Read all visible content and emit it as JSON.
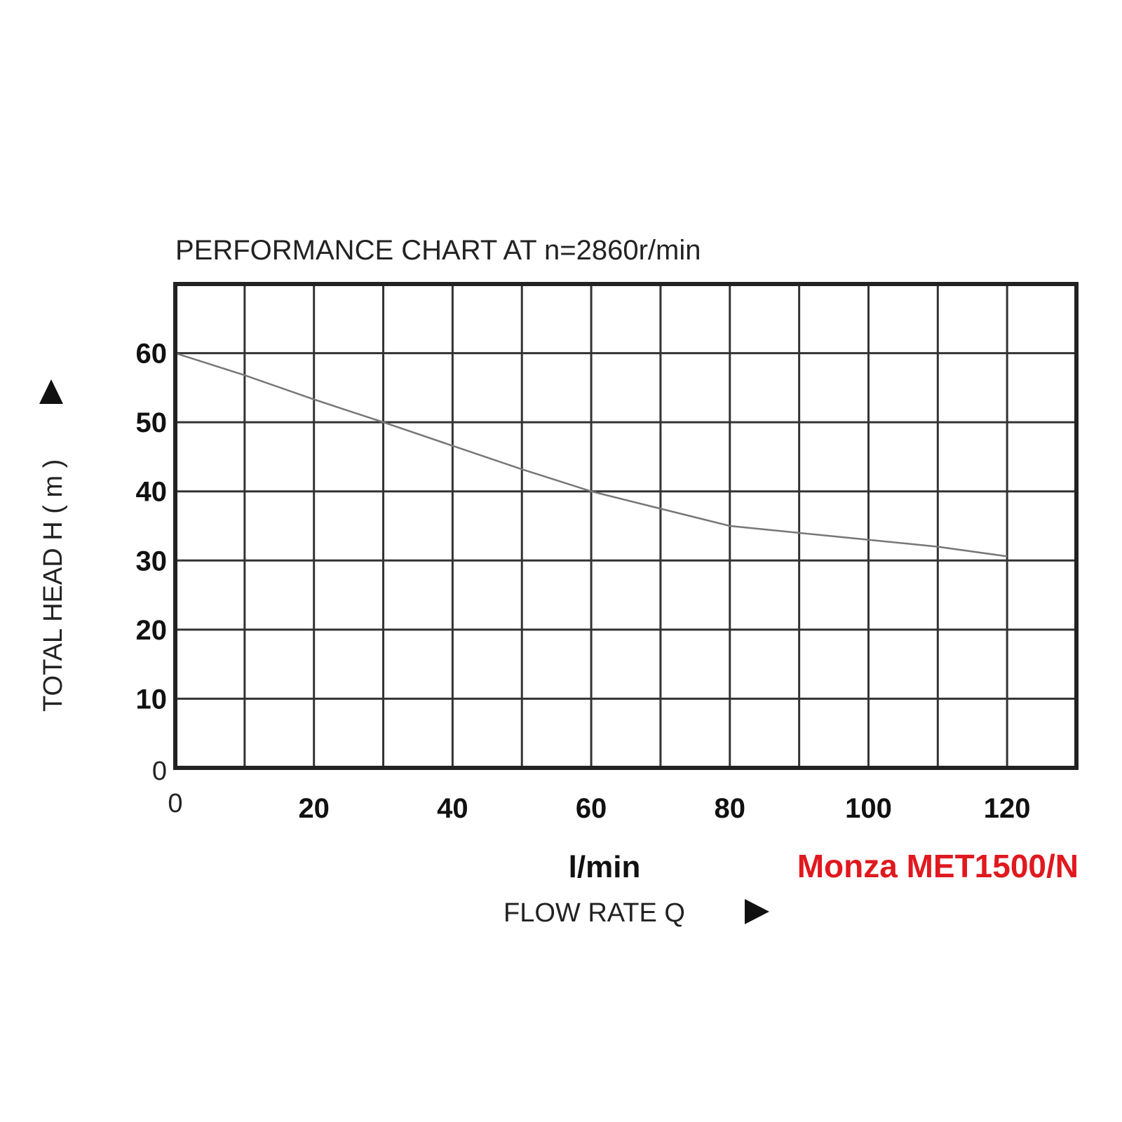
{
  "chart_data": {
    "type": "line",
    "title": "PERFORMANCE  CHART  AT  n=2860r/min",
    "xlabel": "FLOW  RATE  Q",
    "ylabel": "TOTAL HEAD  H ( m )",
    "x_unit": "l/min",
    "model": "Monza MET1500/N",
    "xlim": [
      0,
      130
    ],
    "ylim": [
      0,
      70
    ],
    "x_ticks": [
      "0",
      "20",
      "40",
      "60",
      "80",
      "100",
      "120"
    ],
    "y_ticks": [
      "0",
      "10",
      "20",
      "30",
      "40",
      "50",
      "60"
    ],
    "grid": true,
    "series": [
      {
        "x": [
          0,
          10,
          20,
          30,
          40,
          50,
          60,
          70,
          80,
          90,
          100,
          110,
          120
        ],
        "y": [
          60,
          56.8,
          53.3,
          50,
          46.6,
          43.2,
          40,
          37.5,
          35,
          34,
          33,
          32,
          30.6
        ]
      }
    ]
  },
  "colors": {
    "background": "#ffffff",
    "frame": "#222222",
    "grid": "#333333",
    "curve": "#777777",
    "model_text": "#e0191f"
  },
  "icons": {
    "y_arrow": "triangle-up-icon",
    "x_arrow": "triangle-right-icon"
  }
}
